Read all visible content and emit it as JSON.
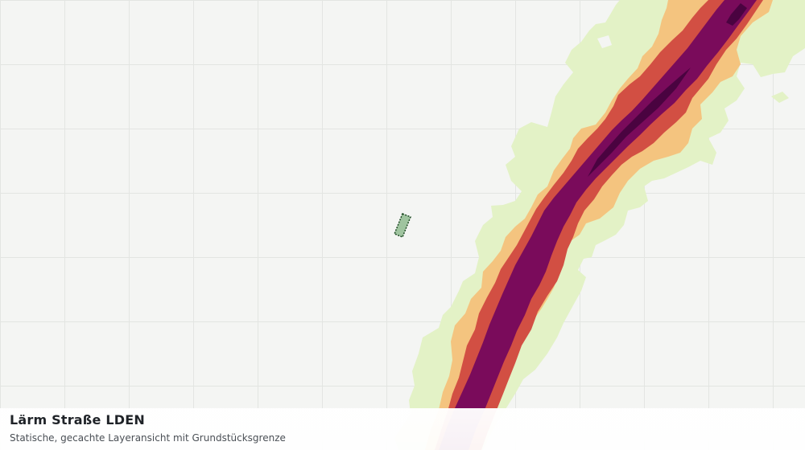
{
  "layer": {
    "title": "Lärm Straße LDEN",
    "subtitle": "Statische, gecachte Layeransicht mit Grundstücksgrenze"
  },
  "colors": {
    "background": "#f4f5f3",
    "grid": "#e3e5e2",
    "noise_band_1": "#e3f2c6",
    "noise_band_2": "#f4c47f",
    "noise_band_3": "#d24f43",
    "noise_band_4": "#7a0b5b",
    "noise_band_5": "#4a0340",
    "parcel_fill": "#9fc49f",
    "parcel_stroke": "#1e4a24"
  }
}
